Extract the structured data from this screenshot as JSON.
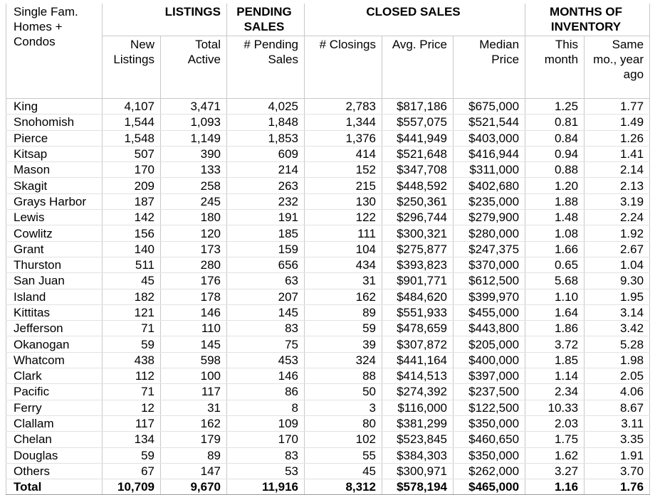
{
  "table": {
    "corner": "Single Fam. Homes + Condos",
    "groups": [
      "LISTINGS",
      "PENDING SALES",
      "CLOSED SALES",
      "MONTHS OF INVENTORY"
    ],
    "columns": [
      "New Listings",
      "Total Active",
      "# Pending Sales",
      "# Closings",
      "Avg. Price",
      "Median Price",
      "This month",
      "Same mo., year ago"
    ],
    "rows": [
      [
        "King",
        "4,107",
        "3,471",
        "4,025",
        "2,783",
        "$817,186",
        "$675,000",
        "1.25",
        "1.77"
      ],
      [
        "Snohomish",
        "1,544",
        "1,093",
        "1,848",
        "1,344",
        "$557,075",
        "$521,544",
        "0.81",
        "1.49"
      ],
      [
        "Pierce",
        "1,548",
        "1,149",
        "1,853",
        "1,376",
        "$441,949",
        "$403,000",
        "0.84",
        "1.26"
      ],
      [
        "Kitsap",
        "507",
        "390",
        "609",
        "414",
        "$521,648",
        "$416,944",
        "0.94",
        "1.41"
      ],
      [
        "Mason",
        "170",
        "133",
        "214",
        "152",
        "$347,708",
        "$311,000",
        "0.88",
        "2.14"
      ],
      [
        "Skagit",
        "209",
        "258",
        "263",
        "215",
        "$448,592",
        "$402,680",
        "1.20",
        "2.13"
      ],
      [
        "Grays Harbor",
        "187",
        "245",
        "232",
        "130",
        "$250,361",
        "$235,000",
        "1.88",
        "3.19"
      ],
      [
        "Lewis",
        "142",
        "180",
        "191",
        "122",
        "$296,744",
        "$279,900",
        "1.48",
        "2.24"
      ],
      [
        "Cowlitz",
        "156",
        "120",
        "185",
        "111",
        "$300,321",
        "$280,000",
        "1.08",
        "1.92"
      ],
      [
        "Grant",
        "140",
        "173",
        "159",
        "104",
        "$275,877",
        "$247,375",
        "1.66",
        "2.67"
      ],
      [
        "Thurston",
        "511",
        "280",
        "656",
        "434",
        "$393,823",
        "$370,000",
        "0.65",
        "1.04"
      ],
      [
        "San Juan",
        "45",
        "176",
        "63",
        "31",
        "$901,771",
        "$612,500",
        "5.68",
        "9.30"
      ],
      [
        "Island",
        "182",
        "178",
        "207",
        "162",
        "$484,620",
        "$399,970",
        "1.10",
        "1.95"
      ],
      [
        "Kittitas",
        "121",
        "146",
        "145",
        "89",
        "$551,933",
        "$455,000",
        "1.64",
        "3.14"
      ],
      [
        "Jefferson",
        "71",
        "110",
        "83",
        "59",
        "$478,659",
        "$443,800",
        "1.86",
        "3.42"
      ],
      [
        "Okanogan",
        "59",
        "145",
        "75",
        "39",
        "$307,872",
        "$205,000",
        "3.72",
        "5.28"
      ],
      [
        "Whatcom",
        "438",
        "598",
        "453",
        "324",
        "$441,164",
        "$400,000",
        "1.85",
        "1.98"
      ],
      [
        "Clark",
        "112",
        "100",
        "146",
        "88",
        "$414,513",
        "$397,000",
        "1.14",
        "2.05"
      ],
      [
        "Pacific",
        "71",
        "117",
        "86",
        "50",
        "$274,392",
        "$237,500",
        "2.34",
        "4.06"
      ],
      [
        "Ferry",
        "12",
        "31",
        "8",
        "3",
        "$116,000",
        "$122,500",
        "10.33",
        "8.67"
      ],
      [
        "Clallam",
        "117",
        "162",
        "109",
        "80",
        "$381,299",
        "$350,000",
        "2.03",
        "3.11"
      ],
      [
        "Chelan",
        "134",
        "179",
        "170",
        "102",
        "$523,845",
        "$460,650",
        "1.75",
        "3.35"
      ],
      [
        "Douglas",
        "59",
        "89",
        "83",
        "55",
        "$384,303",
        "$350,000",
        "1.62",
        "1.91"
      ],
      [
        "Others",
        "67",
        "147",
        "53",
        "45",
        "$300,971",
        "$262,000",
        "3.27",
        "3.70"
      ]
    ],
    "total": [
      "Total",
      "10,709",
      "9,670",
      "11,916",
      "8,312",
      "$578,194",
      "$465,000",
      "1.16",
      "1.76"
    ]
  }
}
